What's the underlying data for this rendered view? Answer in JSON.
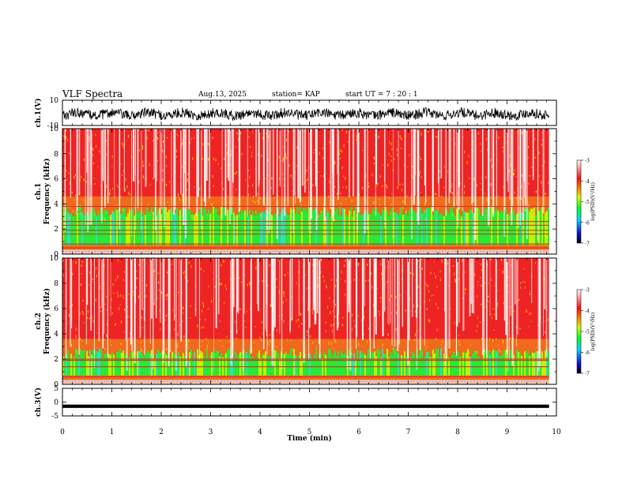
{
  "header": {
    "title": "VLF Spectra",
    "date": "Aug.13, 2025",
    "station": "station= KAP",
    "start_ut": "start  UT  =   7 : 20 : 1"
  },
  "chart_data": [
    {
      "type": "line",
      "name": "ch1-waveform",
      "ylabel": "ch.1(V)",
      "ylim": [
        -10,
        10
      ],
      "yticks": [
        "10",
        "-10"
      ],
      "xlim": [
        0,
        10
      ],
      "signal": "noisy waveform, mostly between -5 and 3 V, data ends near 9.85 min"
    },
    {
      "type": "heatmap",
      "name": "ch1-spectrogram",
      "ylabel": "ch.1\nFrequency (kHz)",
      "ylim": [
        0,
        10
      ],
      "yticks": [
        0,
        2,
        4,
        6,
        8,
        10
      ],
      "xlim": [
        0,
        10
      ],
      "data_end_min": 9.85,
      "colorbar": {
        "label": "log(PSD)(V²/Hz)",
        "ticks": [
          "-3",
          "-4",
          "-5",
          "-6",
          "-7"
        ],
        "range": [
          -7,
          -3
        ]
      },
      "green_band_top_khz": 3.6,
      "horizontal_lines_khz": [
        3.8,
        2.6,
        2.3,
        1.9,
        1.6,
        0.8,
        0.5
      ]
    },
    {
      "type": "heatmap",
      "name": "ch2-spectrogram",
      "ylabel": "ch.2\nFrequency (kHz)",
      "ylim": [
        0,
        10
      ],
      "yticks": [
        0,
        2,
        4,
        6,
        8,
        10
      ],
      "xlim": [
        0,
        10
      ],
      "data_end_min": 9.85,
      "colorbar": {
        "label": "log(PSD)(V²/Hz)",
        "ticks": [
          "-3",
          "-4",
          "-5",
          "-6",
          "-7"
        ],
        "range": [
          -7,
          -3
        ]
      },
      "green_band_top_khz": 2.6,
      "horizontal_lines_khz": [
        2.0,
        1.9,
        1.4,
        0.6
      ]
    },
    {
      "type": "line",
      "name": "ch3-waveform",
      "ylabel": "ch.3(V)",
      "ylim": [
        -5,
        5
      ],
      "yticks": [
        "5",
        "0",
        "-5"
      ],
      "xlim": [
        0,
        10
      ],
      "signal": "thick flat trace near -1.5 V"
    }
  ],
  "xaxis": {
    "label": "Time (min)",
    "ticks": [
      "0",
      "1",
      "2",
      "3",
      "4",
      "5",
      "6",
      "7",
      "8",
      "9",
      "10"
    ]
  }
}
